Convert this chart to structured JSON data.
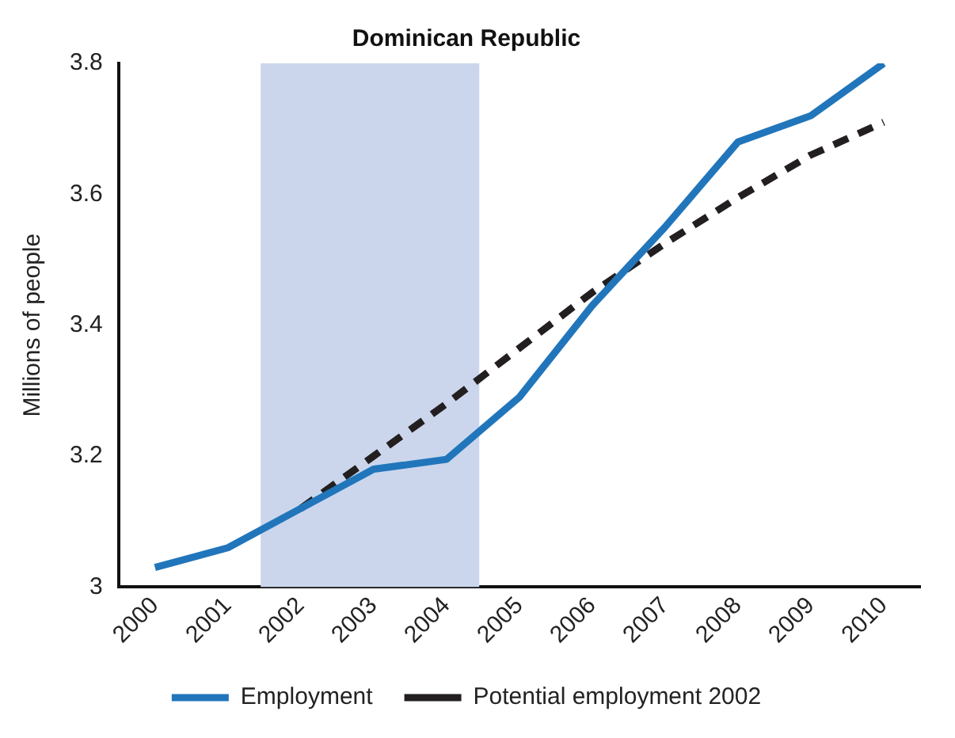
{
  "chart_data": {
    "type": "line",
    "title": "Dominican Republic",
    "ylabel": "Millions of people",
    "x": [
      2000,
      2001,
      2002,
      2003,
      2004,
      2005,
      2006,
      2007,
      2008,
      2009,
      2010
    ],
    "xlim": [
      1999.5,
      2010.5
    ],
    "xticks": [
      2000,
      2001,
      2002,
      2003,
      2004,
      2005,
      2006,
      2007,
      2008,
      2009,
      2010
    ],
    "ylim": [
      3,
      3.8
    ],
    "yticks": [
      3,
      3.2,
      3.4,
      3.6,
      3.8
    ],
    "series": [
      {
        "name": "Employment",
        "color": "#2176bb",
        "line_style": "solid",
        "values": [
          3.03,
          3.06,
          3.12,
          3.18,
          3.195,
          3.29,
          3.43,
          3.55,
          3.68,
          3.72,
          3.8
        ]
      },
      {
        "name": "Potential employment 2002",
        "color": "#231f20",
        "line_style": "dashed",
        "values": [
          null,
          null,
          3.12,
          3.2,
          3.28,
          3.365,
          3.45,
          3.525,
          3.595,
          3.66,
          3.71
        ]
      }
    ],
    "bands": [
      {
        "axis": "x",
        "from": 2001.45,
        "to": 2004.45,
        "color": "#cbd6ec"
      }
    ],
    "grid": false,
    "legend": "bottom",
    "marker": "none"
  }
}
